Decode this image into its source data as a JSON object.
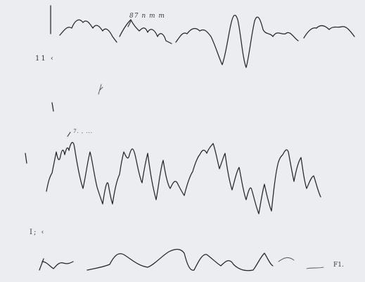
{
  "figure": {
    "background": "#ecedf0",
    "ink": "#26262a",
    "labels": {
      "upper_trace_note": "87 n m m",
      "left_mark_1": "11 ‹",
      "middle_trace_note": "7. , ...",
      "left_mark_2": "I; ‹",
      "corner_note": "F1."
    }
  }
}
